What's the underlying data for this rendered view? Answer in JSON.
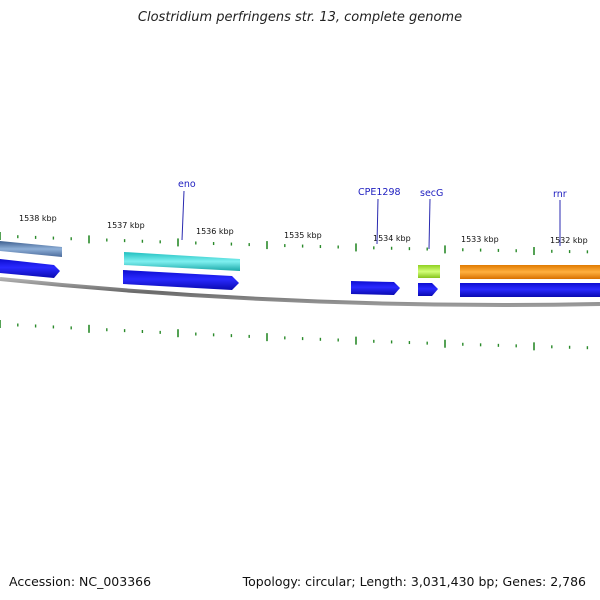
{
  "header": {
    "title": "Clostridium perfringens str. 13, complete genome"
  },
  "footer": {
    "accession": "Accession: NC_003366",
    "summary": "Topology: circular; Length: 3,031,430 bp; Genes: 2,786"
  },
  "axis_labels": [
    {
      "text": "1538 kbp"
    },
    {
      "text": "1537 kbp"
    },
    {
      "text": "1536 kbp"
    },
    {
      "text": "1535 kbp"
    },
    {
      "text": "1534 kbp"
    },
    {
      "text": "1533 kbp"
    },
    {
      "text": "1532 kbp"
    }
  ],
  "genes": [
    {
      "name": "eno"
    },
    {
      "name": "CPE1298"
    },
    {
      "name": "secG"
    },
    {
      "name": "rnr"
    }
  ],
  "colors": {
    "cds": "#1a1aee",
    "gene_teal": "#22cccc",
    "gene_steel": "#5577aa",
    "gene_lime": "#a6e83a",
    "gene_orange": "#f08c10",
    "tick": "#2a8a2a",
    "backbone": "#8a8a8a",
    "label_line": "#2a2ab0"
  }
}
